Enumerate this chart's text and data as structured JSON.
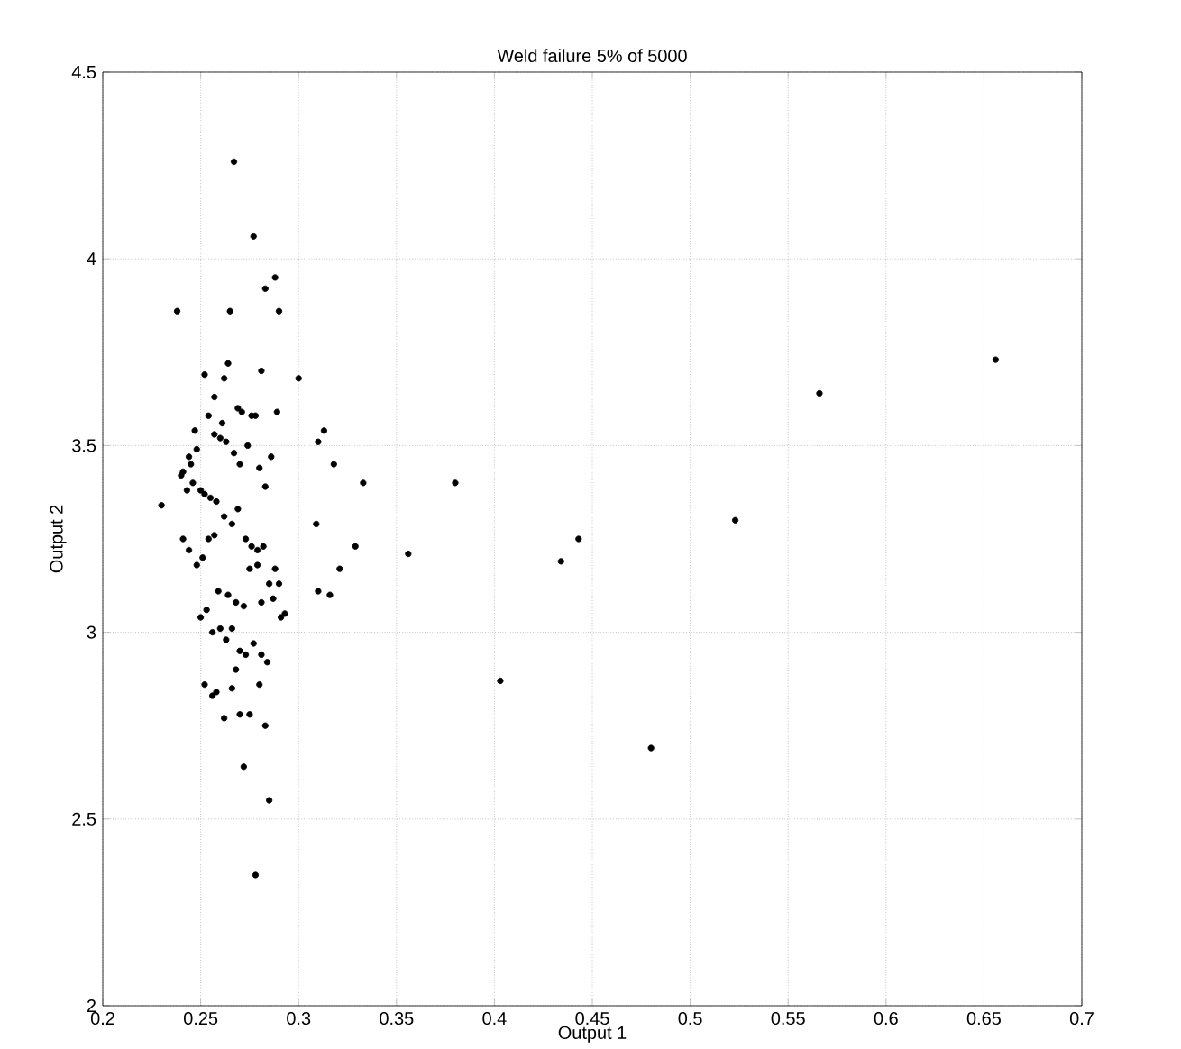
{
  "chart_data": {
    "type": "scatter",
    "title": "Weld failure 5% of 5000",
    "xlabel": "Output 1",
    "ylabel": "Output 2",
    "x": [
      0.656,
      0.566,
      0.523,
      0.48,
      0.443,
      0.434,
      0.403,
      0.38,
      0.356,
      0.333,
      0.329,
      0.321,
      0.318,
      0.313,
      0.31,
      0.31,
      0.316,
      0.309,
      0.3,
      0.293,
      0.267,
      0.277,
      0.288,
      0.283,
      0.29,
      0.265,
      0.238,
      0.23,
      0.269,
      0.276,
      0.281,
      0.264,
      0.262,
      0.252,
      0.257,
      0.261,
      0.271,
      0.278,
      0.289,
      0.247,
      0.244,
      0.241,
      0.245,
      0.248,
      0.254,
      0.257,
      0.26,
      0.263,
      0.267,
      0.27,
      0.274,
      0.28,
      0.283,
      0.286,
      0.24,
      0.243,
      0.246,
      0.25,
      0.252,
      0.255,
      0.258,
      0.262,
      0.266,
      0.269,
      0.273,
      0.276,
      0.279,
      0.282,
      0.285,
      0.288,
      0.291,
      0.241,
      0.244,
      0.248,
      0.251,
      0.254,
      0.257,
      0.259,
      0.264,
      0.268,
      0.272,
      0.275,
      0.279,
      0.281,
      0.287,
      0.29,
      0.25,
      0.253,
      0.256,
      0.26,
      0.263,
      0.266,
      0.27,
      0.273,
      0.277,
      0.281,
      0.284,
      0.252,
      0.258,
      0.266,
      0.27,
      0.275,
      0.283,
      0.272,
      0.285,
      0.278,
      0.28,
      0.262,
      0.256,
      0.268
    ],
    "values": [
      3.73,
      3.64,
      3.3,
      2.69,
      3.25,
      3.19,
      2.87,
      3.4,
      3.21,
      3.4,
      3.23,
      3.17,
      3.45,
      3.54,
      3.51,
      3.11,
      3.1,
      3.29,
      3.68,
      3.05,
      4.26,
      4.06,
      3.95,
      3.92,
      3.86,
      3.86,
      3.86,
      3.34,
      3.6,
      3.58,
      3.7,
      3.72,
      3.68,
      3.69,
      3.63,
      3.56,
      3.59,
      3.58,
      3.59,
      3.54,
      3.47,
      3.43,
      3.45,
      3.49,
      3.58,
      3.53,
      3.52,
      3.51,
      3.48,
      3.45,
      3.5,
      3.44,
      3.39,
      3.47,
      3.42,
      3.38,
      3.4,
      3.38,
      3.37,
      3.36,
      3.35,
      3.31,
      3.29,
      3.33,
      3.25,
      3.23,
      3.22,
      3.23,
      3.13,
      3.17,
      3.04,
      3.25,
      3.22,
      3.18,
      3.2,
      3.25,
      3.26,
      3.11,
      3.1,
      3.08,
      3.07,
      3.17,
      3.18,
      3.08,
      3.09,
      3.13,
      3.04,
      3.06,
      3.0,
      3.01,
      2.98,
      3.01,
      2.95,
      2.94,
      2.97,
      2.94,
      2.92,
      2.86,
      2.84,
      2.85,
      2.78,
      2.78,
      2.75,
      2.64,
      2.55,
      2.35,
      2.86,
      2.77,
      2.83,
      2.9
    ],
    "xlim": [
      0.2,
      0.7
    ],
    "ylim": [
      2,
      4.5
    ],
    "xticks": [
      0.2,
      0.25,
      0.3,
      0.35,
      0.4,
      0.45,
      0.5,
      0.55,
      0.6,
      0.65,
      0.7
    ],
    "yticks": [
      2,
      2.5,
      3,
      3.5,
      4,
      4.5
    ],
    "color": "#000000",
    "grid": true
  }
}
